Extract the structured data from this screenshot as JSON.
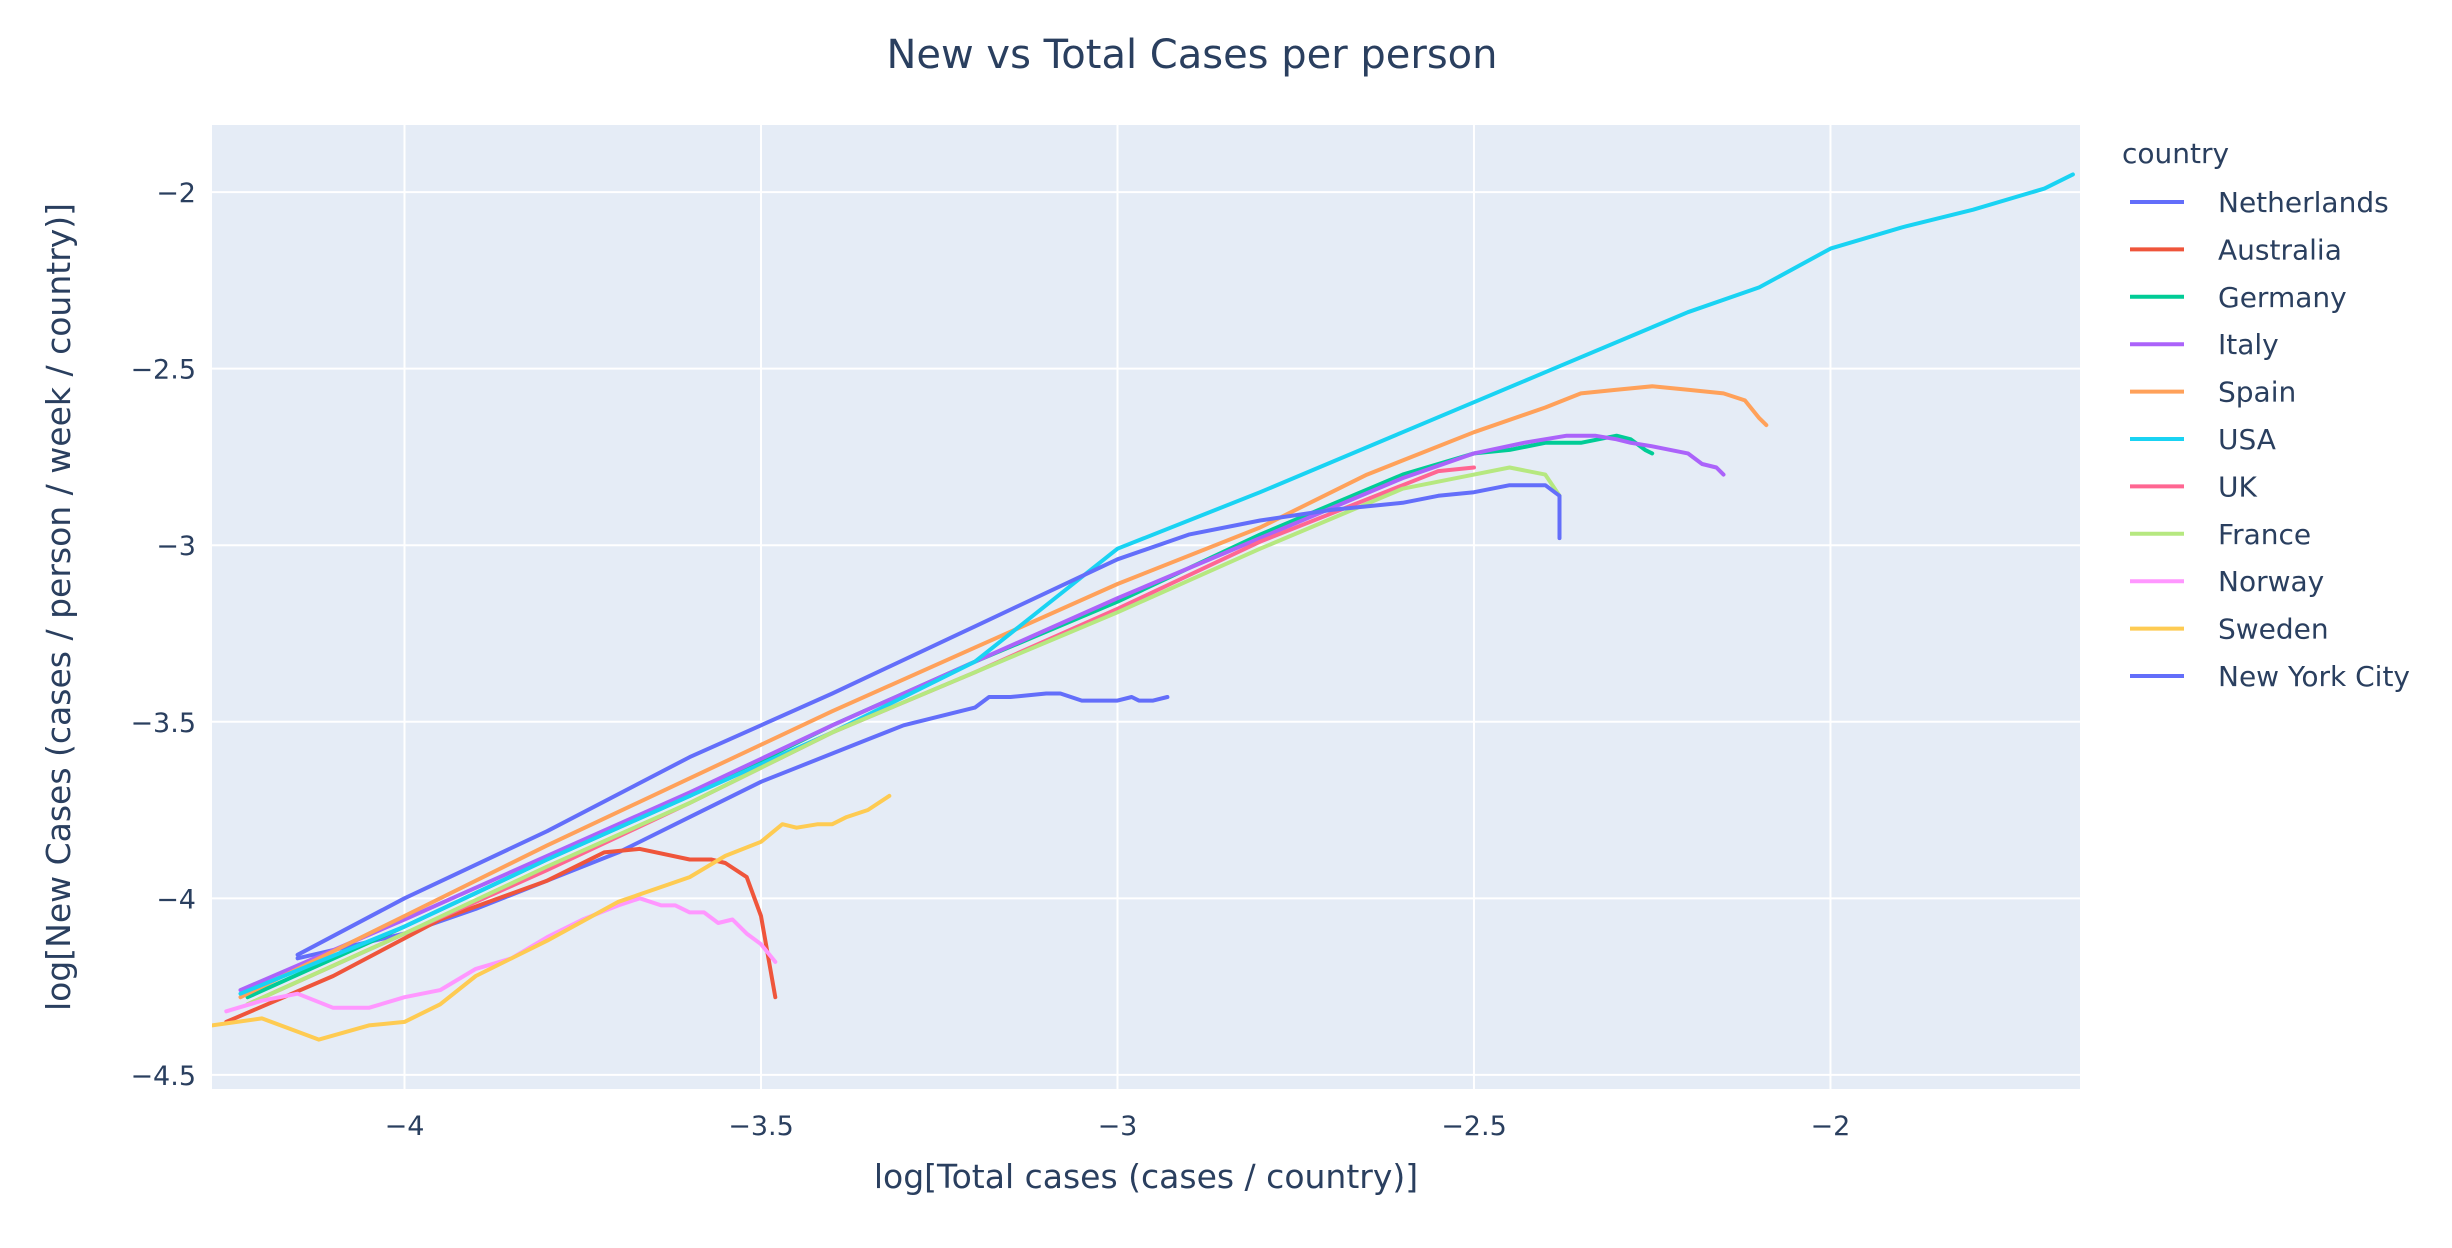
{
  "chart_data": {
    "type": "line",
    "title": "New vs Total Cases per person",
    "xlabel": "log[Total cases (cases / country)]",
    "ylabel": "log[New Cases (cases / person / week / country)]",
    "xlim": [
      -4.27,
      -1.65
    ],
    "ylim": [
      -4.54,
      -1.81
    ],
    "xticks": [
      -4,
      -3.5,
      -3,
      -2.5,
      -2
    ],
    "yticks": [
      -2,
      -2.5,
      -3,
      -3.5,
      -4,
      -4.5
    ],
    "xtick_labels": [
      "−4",
      "−3.5",
      "−3",
      "−2.5",
      "−2"
    ],
    "ytick_labels": [
      "−2",
      "−2.5",
      "−3",
      "−3.5",
      "−4",
      "−4.5"
    ],
    "grid": true,
    "legend": {
      "title": "country",
      "position": "right"
    },
    "colors": {
      "plot_bg": "#e5ecf6",
      "grid": "#ffffff",
      "text": "#2a3f5f"
    },
    "series": [
      {
        "name": "Netherlands",
        "color": "#636efa",
        "x": [
          -4.15,
          -4.0,
          -3.9,
          -3.8,
          -3.7,
          -3.6,
          -3.5,
          -3.45,
          -3.4,
          -3.35,
          -3.3,
          -3.2,
          -3.18,
          -3.15,
          -3.1,
          -3.08,
          -3.05,
          -3.0,
          -2.98,
          -2.97,
          -2.95,
          -2.93
        ],
        "y": [
          -4.17,
          -4.1,
          -4.03,
          -3.95,
          -3.87,
          -3.77,
          -3.67,
          -3.63,
          -3.59,
          -3.55,
          -3.51,
          -3.46,
          -3.43,
          -3.43,
          -3.42,
          -3.42,
          -3.44,
          -3.44,
          -3.43,
          -3.44,
          -3.44,
          -3.43
        ]
      },
      {
        "name": "Australia",
        "color": "#EF553B",
        "x": [
          -4.25,
          -4.1,
          -3.95,
          -3.8,
          -3.72,
          -3.67,
          -3.6,
          -3.57,
          -3.55,
          -3.52,
          -3.5,
          -3.48
        ],
        "y": [
          -4.35,
          -4.22,
          -4.06,
          -3.95,
          -3.87,
          -3.86,
          -3.89,
          -3.89,
          -3.9,
          -3.94,
          -4.05,
          -4.28
        ]
      },
      {
        "name": "Germany",
        "color": "#00cc96",
        "x": [
          -4.22,
          -4.0,
          -3.8,
          -3.6,
          -3.4,
          -3.2,
          -3.0,
          -2.8,
          -2.6,
          -2.5,
          -2.45,
          -2.4,
          -2.35,
          -2.3,
          -2.28,
          -2.26,
          -2.25
        ],
        "y": [
          -4.28,
          -4.08,
          -3.89,
          -3.71,
          -3.51,
          -3.33,
          -3.16,
          -2.97,
          -2.8,
          -2.74,
          -2.73,
          -2.71,
          -2.71,
          -2.69,
          -2.7,
          -2.73,
          -2.74
        ]
      },
      {
        "name": "Italy",
        "color": "#ab63fa",
        "x": [
          -4.23,
          -4.0,
          -3.8,
          -3.6,
          -3.4,
          -3.2,
          -3.0,
          -2.8,
          -2.6,
          -2.5,
          -2.43,
          -2.37,
          -2.33,
          -2.3,
          -2.28,
          -2.25,
          -2.2,
          -2.18,
          -2.16,
          -2.15
        ],
        "y": [
          -4.26,
          -4.06,
          -3.88,
          -3.7,
          -3.51,
          -3.33,
          -3.15,
          -2.98,
          -2.81,
          -2.74,
          -2.71,
          -2.69,
          -2.69,
          -2.7,
          -2.71,
          -2.72,
          -2.74,
          -2.77,
          -2.78,
          -2.8
        ]
      },
      {
        "name": "Spain",
        "color": "#FFA15A",
        "x": [
          -4.23,
          -4.0,
          -3.8,
          -3.6,
          -3.4,
          -3.2,
          -3.0,
          -2.8,
          -2.65,
          -2.5,
          -2.4,
          -2.35,
          -2.3,
          -2.25,
          -2.2,
          -2.15,
          -2.12,
          -2.1,
          -2.09
        ],
        "y": [
          -4.28,
          -4.05,
          -3.85,
          -3.66,
          -3.47,
          -3.29,
          -3.11,
          -2.95,
          -2.8,
          -2.68,
          -2.61,
          -2.57,
          -2.56,
          -2.55,
          -2.56,
          -2.57,
          -2.59,
          -2.64,
          -2.66
        ]
      },
      {
        "name": "USA",
        "color": "#19d3f3",
        "x": [
          -4.23,
          -4.0,
          -3.8,
          -3.6,
          -3.4,
          -3.2,
          -3.0,
          -2.8,
          -2.6,
          -2.4,
          -2.2,
          -2.1,
          -2.0,
          -1.9,
          -1.8,
          -1.7,
          -1.66
        ],
        "y": [
          -4.27,
          -4.08,
          -3.89,
          -3.71,
          -3.53,
          -3.33,
          -3.01,
          -2.85,
          -2.68,
          -2.51,
          -2.34,
          -2.27,
          -2.16,
          -2.1,
          -2.05,
          -1.99,
          -1.95
        ]
      },
      {
        "name": "UK",
        "color": "#FF6692",
        "x": [
          -4.22,
          -4.0,
          -3.8,
          -3.6,
          -3.4,
          -3.2,
          -3.0,
          -2.8,
          -2.6,
          -2.55,
          -2.5
        ],
        "y": [
          -4.3,
          -4.1,
          -3.92,
          -3.73,
          -3.53,
          -3.36,
          -3.18,
          -2.99,
          -2.83,
          -2.79,
          -2.78
        ]
      },
      {
        "name": "France",
        "color": "#B6E880",
        "x": [
          -4.22,
          -4.0,
          -3.8,
          -3.6,
          -3.4,
          -3.2,
          -3.0,
          -2.8,
          -2.6,
          -2.5,
          -2.45,
          -2.4,
          -2.38
        ],
        "y": [
          -4.3,
          -4.1,
          -3.91,
          -3.73,
          -3.53,
          -3.36,
          -3.19,
          -3.01,
          -2.84,
          -2.8,
          -2.78,
          -2.8,
          -2.86
        ]
      },
      {
        "name": "Norway",
        "color": "#FF97FF",
        "x": [
          -4.25,
          -4.2,
          -4.15,
          -4.1,
          -4.05,
          -4.0,
          -3.95,
          -3.9,
          -3.85,
          -3.8,
          -3.75,
          -3.7,
          -3.67,
          -3.64,
          -3.62,
          -3.6,
          -3.58,
          -3.56,
          -3.54,
          -3.52,
          -3.5,
          -3.48
        ],
        "y": [
          -4.32,
          -4.29,
          -4.27,
          -4.31,
          -4.31,
          -4.28,
          -4.26,
          -4.2,
          -4.17,
          -4.11,
          -4.06,
          -4.02,
          -4.0,
          -4.02,
          -4.02,
          -4.04,
          -4.04,
          -4.07,
          -4.06,
          -4.1,
          -4.13,
          -4.18
        ]
      },
      {
        "name": "Sweden",
        "color": "#FECB52",
        "x": [
          -4.27,
          -4.2,
          -4.12,
          -4.05,
          -4.0,
          -3.95,
          -3.9,
          -3.8,
          -3.7,
          -3.6,
          -3.55,
          -3.5,
          -3.47,
          -3.45,
          -3.42,
          -3.4,
          -3.38,
          -3.35,
          -3.32
        ],
        "y": [
          -4.36,
          -4.34,
          -4.4,
          -4.36,
          -4.35,
          -4.3,
          -4.22,
          -4.12,
          -4.01,
          -3.94,
          -3.88,
          -3.84,
          -3.79,
          -3.8,
          -3.79,
          -3.79,
          -3.77,
          -3.75,
          -3.71
        ]
      },
      {
        "name": "New York City",
        "color": "#636efa",
        "x": [
          -4.15,
          -4.0,
          -3.8,
          -3.6,
          -3.4,
          -3.2,
          -3.0,
          -2.9,
          -2.8,
          -2.7,
          -2.6,
          -2.55,
          -2.5,
          -2.45,
          -2.42,
          -2.4,
          -2.38,
          -2.38
        ],
        "y": [
          -4.16,
          -4.0,
          -3.81,
          -3.6,
          -3.42,
          -3.23,
          -3.04,
          -2.97,
          -2.93,
          -2.9,
          -2.88,
          -2.86,
          -2.85,
          -2.83,
          -2.83,
          -2.83,
          -2.86,
          -2.98
        ]
      }
    ]
  }
}
